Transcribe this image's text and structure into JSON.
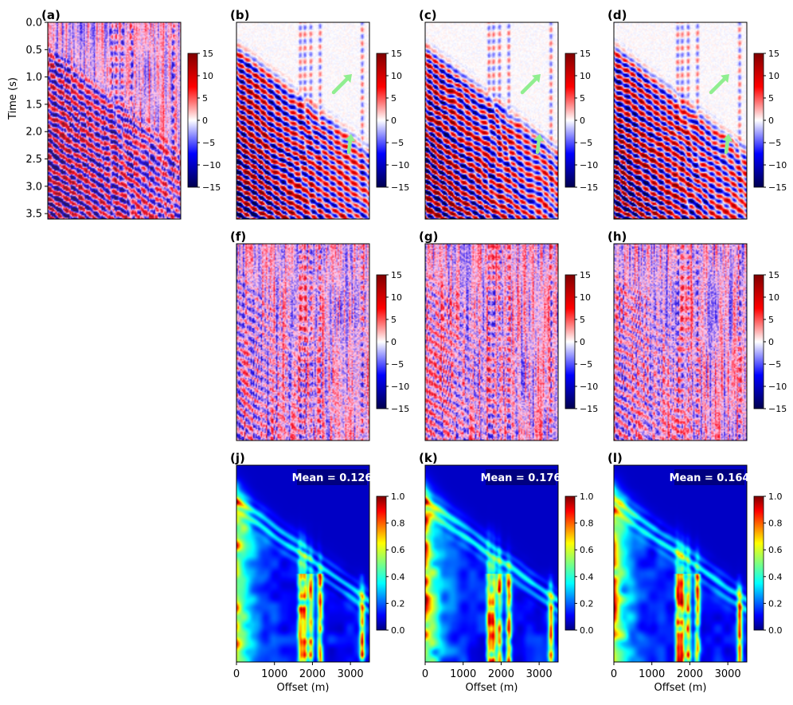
{
  "figure": {
    "colors": {
      "seismic": [
        "#00004d",
        "#0000ff",
        "#ffffff",
        "#ff0000",
        "#800000"
      ],
      "jet": [
        "#00007f",
        "#0000ff",
        "#00ffff",
        "#7fff7f",
        "#ffff00",
        "#ff0000",
        "#7f0000"
      ],
      "arrow": "#90ee90",
      "badge_bg": "#000080",
      "badge_text": "#ffffff"
    }
  },
  "chart_data": [
    {
      "id": "a",
      "label": "(a)",
      "type": "heatmap",
      "colormap": "seismic",
      "ylabel": "Time (s)",
      "ylim": [
        3.6,
        0.0
      ],
      "yticks": [
        "0.0",
        "0.5",
        "1.0",
        "1.5",
        "2.0",
        "2.5",
        "3.0",
        "3.5"
      ],
      "xlim": [
        0,
        3500
      ],
      "clim": [
        -15,
        15
      ],
      "colorbar_ticks": [
        "15",
        "10",
        "5",
        "0",
        "−5",
        "−10",
        "−15"
      ],
      "style": "noisy"
    },
    {
      "id": "b",
      "label": "(b)",
      "type": "heatmap",
      "colormap": "seismic",
      "ylim": [
        3.6,
        0.0
      ],
      "xlim": [
        0,
        3500
      ],
      "clim": [
        -15,
        15
      ],
      "colorbar_ticks": [
        "15",
        "10",
        "5",
        "0",
        "−5",
        "−10",
        "−15"
      ],
      "style": "clean",
      "annotations": [
        "green arrow near (3100 m, 1.0 s)",
        "green arrow near (3050 m, 2.3 s)"
      ]
    },
    {
      "id": "c",
      "label": "(c)",
      "type": "heatmap",
      "colormap": "seismic",
      "ylim": [
        3.6,
        0.0
      ],
      "xlim": [
        0,
        3500
      ],
      "clim": [
        -15,
        15
      ],
      "colorbar_ticks": [
        "15",
        "10",
        "5",
        "0",
        "−5",
        "−10",
        "−15"
      ],
      "style": "clean",
      "annotations": [
        "green arrow near (3100 m, 1.0 s)",
        "green arrow near (3050 m, 2.3 s)"
      ]
    },
    {
      "id": "d",
      "label": "(d)",
      "type": "heatmap",
      "colormap": "seismic",
      "ylim": [
        3.6,
        0.0
      ],
      "xlim": [
        0,
        3500
      ],
      "clim": [
        -15,
        15
      ],
      "colorbar_ticks": [
        "15",
        "10",
        "5",
        "0",
        "−5",
        "−10",
        "−15"
      ],
      "style": "clean",
      "annotations": [
        "green arrow near (3100 m, 1.0 s)",
        "green arrow near (3050 m, 2.3 s)"
      ]
    },
    {
      "id": "f",
      "label": "(f)",
      "type": "heatmap",
      "colormap": "seismic",
      "ylim": [
        3.6,
        0.0
      ],
      "xlim": [
        0,
        3500
      ],
      "clim": [
        -15,
        15
      ],
      "colorbar_ticks": [
        "15",
        "10",
        "5",
        "0",
        "−5",
        "−10",
        "−15"
      ],
      "style": "residual"
    },
    {
      "id": "g",
      "label": "(g)",
      "type": "heatmap",
      "colormap": "seismic",
      "ylim": [
        3.6,
        0.0
      ],
      "xlim": [
        0,
        3500
      ],
      "clim": [
        -15,
        15
      ],
      "colorbar_ticks": [
        "15",
        "10",
        "5",
        "0",
        "−5",
        "−10",
        "−15"
      ],
      "style": "residual"
    },
    {
      "id": "h",
      "label": "(h)",
      "type": "heatmap",
      "colormap": "seismic",
      "ylim": [
        3.6,
        0.0
      ],
      "xlim": [
        0,
        3500
      ],
      "clim": [
        -15,
        15
      ],
      "colorbar_ticks": [
        "15",
        "10",
        "5",
        "0",
        "−5",
        "−10",
        "−15"
      ],
      "style": "residual"
    },
    {
      "id": "j",
      "label": "(j)",
      "type": "heatmap",
      "colormap": "jet",
      "mean_text": "Mean = 0.126",
      "mean": 0.126,
      "xlabel": "Offset (m)",
      "xticks": [
        "0",
        "1000",
        "2000",
        "3000"
      ],
      "xlim": [
        0,
        3500
      ],
      "clim": [
        0.0,
        1.0
      ],
      "colorbar_ticks": [
        "1.0",
        "0.8",
        "0.6",
        "0.4",
        "0.2",
        "0.0"
      ],
      "style": "sim"
    },
    {
      "id": "k",
      "label": "(k)",
      "type": "heatmap",
      "colormap": "jet",
      "mean_text": "Mean = 0.176",
      "mean": 0.176,
      "xlabel": "Offset (m)",
      "xticks": [
        "0",
        "1000",
        "2000",
        "3000"
      ],
      "xlim": [
        0,
        3500
      ],
      "clim": [
        0.0,
        1.0
      ],
      "colorbar_ticks": [
        "1.0",
        "0.8",
        "0.6",
        "0.4",
        "0.2",
        "0.0"
      ],
      "style": "sim"
    },
    {
      "id": "l",
      "label": "(l)",
      "type": "heatmap",
      "colormap": "jet",
      "mean_text": "Mean = 0.164",
      "mean": 0.164,
      "xlabel": "Offset (m)",
      "xticks": [
        "0",
        "1000",
        "2000",
        "3000"
      ],
      "xlim": [
        0,
        3500
      ],
      "clim": [
        0.0,
        1.0
      ],
      "colorbar_ticks": [
        "1.0",
        "0.8",
        "0.6",
        "0.4",
        "0.2",
        "0.0"
      ],
      "style": "sim"
    }
  ]
}
